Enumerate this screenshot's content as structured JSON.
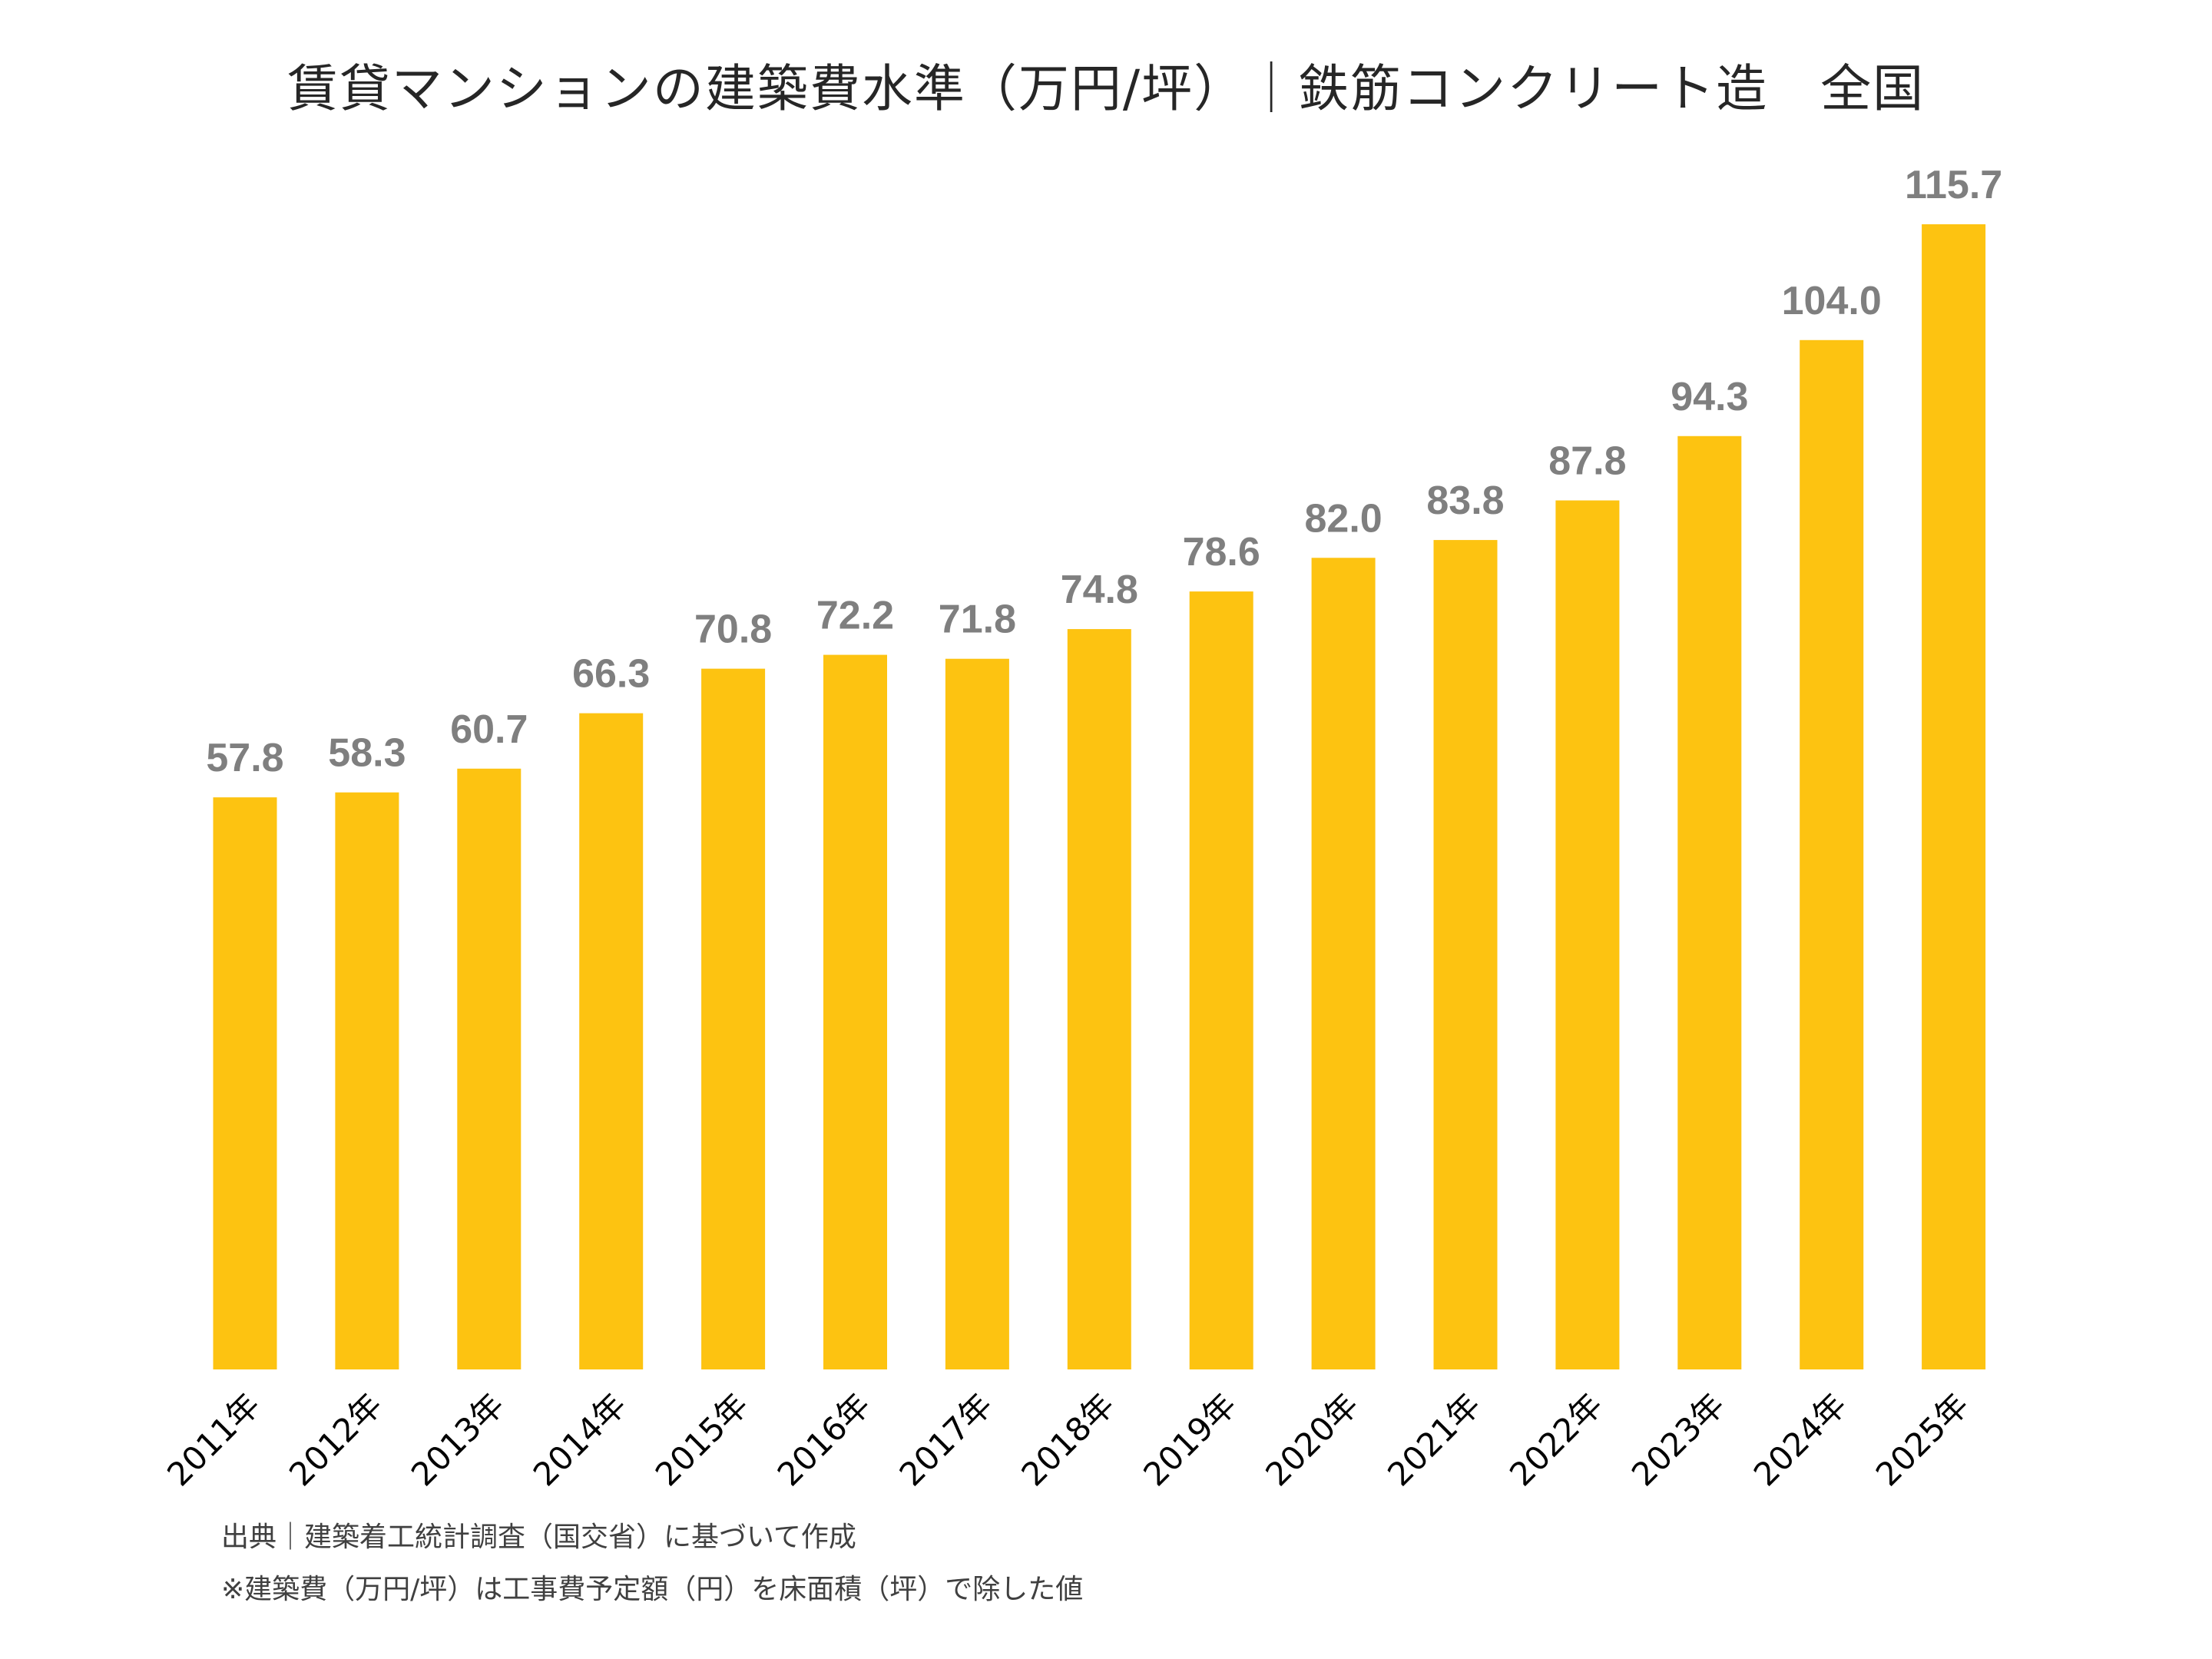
{
  "chart_data": {
    "type": "bar",
    "title": "賃貸マンションの建築費水準（万円/坪）｜鉄筋コンクリート造　全国",
    "categories": [
      "2011年",
      "2012年",
      "2013年",
      "2014年",
      "2015年",
      "2016年",
      "2017年",
      "2018年",
      "2019年",
      "2020年",
      "2021年",
      "2022年",
      "2023年",
      "2024年",
      "2025年"
    ],
    "values": [
      57.8,
      58.3,
      60.7,
      66.3,
      70.8,
      72.2,
      71.8,
      74.8,
      78.6,
      82.0,
      83.8,
      87.8,
      94.3,
      104.0,
      115.7
    ],
    "value_labels": [
      "57.8",
      "58.3",
      "60.7",
      "66.3",
      "70.8",
      "72.2",
      "71.8",
      "74.8",
      "78.6",
      "82.0",
      "83.8",
      "87.8",
      "94.3",
      "104.0",
      "115.7"
    ],
    "xlabel": "",
    "ylabel": "",
    "ylim": [
      0,
      115.7
    ],
    "grid": false,
    "y_axis_visible": false,
    "bar_color": "#FDC311",
    "label_color": "#7F7F7F"
  },
  "notes": {
    "source": "出典｜建築着工統計調査（国交省）に基づいて作成",
    "definition": "※建築費（万円/坪）は工事費予定額（円）を床面積（坪）で除した値"
  }
}
